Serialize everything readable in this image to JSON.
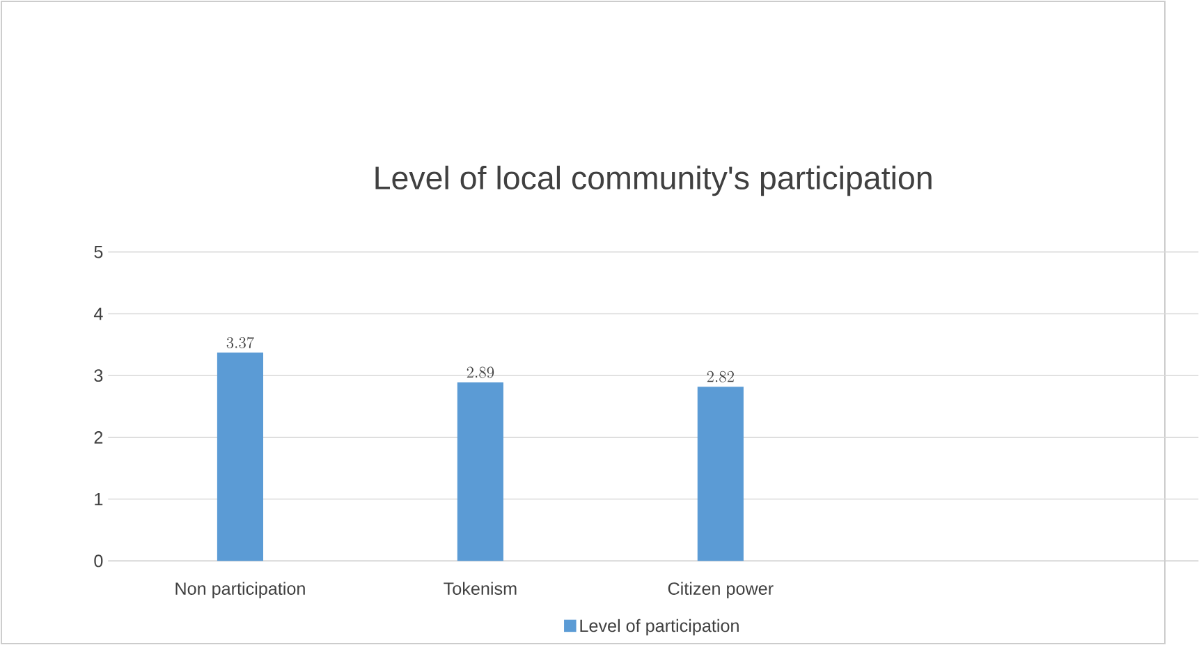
{
  "chart_data": {
    "type": "bar",
    "title": "Level of local community's participation",
    "categories": [
      "Non participation",
      "Tokenism",
      "Citizen power"
    ],
    "series": [
      {
        "name": "Level of participation",
        "color": "#5b9bd5",
        "values": [
          3.37,
          2.89,
          2.82
        ]
      }
    ],
    "ylim": [
      0,
      5
    ],
    "yticks": [
      0,
      1,
      2,
      3,
      4,
      5
    ],
    "grid": "y",
    "legend": "bottom",
    "data_labels": true
  }
}
